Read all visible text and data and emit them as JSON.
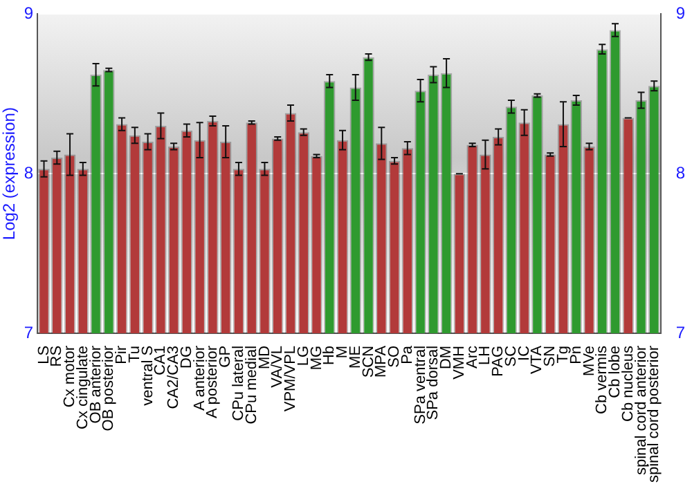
{
  "chart_data": {
    "type": "bar",
    "ylabel": "Log2 (expression)",
    "categories": [
      "LS",
      "RS",
      "Cx motor",
      "Cx cingulate",
      "OB anterior",
      "OB posterior",
      "Pir",
      "Tu",
      "ventral S",
      "CA1",
      "CA2/CA3",
      "DG",
      "A anterior",
      "A posterior",
      "GP",
      "CPu lateral",
      "CPu medial",
      "MD",
      "VA/VL",
      "VPM/VPL",
      "LG",
      "MG",
      "Hb",
      "M",
      "ME",
      "SCN",
      "MPA",
      "SO",
      "Pa",
      "SPa ventral",
      "SPa dorsal",
      "DM",
      "VMH",
      "Arc",
      "LH",
      "PAG",
      "SC",
      "IC",
      "VTA",
      "SN",
      "Tg",
      "Pn",
      "MVe",
      "Cb vermis",
      "Cb lobe",
      "Cb nucleus",
      "spinal cord anterior",
      "spinal cord posterior"
    ],
    "values": [
      8.03,
      8.1,
      8.12,
      8.03,
      8.62,
      8.65,
      8.31,
      8.24,
      8.2,
      8.3,
      8.17,
      8.27,
      8.21,
      8.33,
      8.2,
      8.03,
      8.32,
      8.03,
      8.22,
      8.38,
      8.26,
      8.11,
      8.58,
      8.21,
      8.54,
      8.73,
      8.19,
      8.08,
      8.16,
      8.52,
      8.62,
      8.63,
      8.0,
      8.18,
      8.12,
      8.23,
      8.42,
      8.32,
      8.49,
      8.12,
      8.31,
      8.46,
      8.17,
      8.78,
      8.9,
      8.35,
      8.46,
      8.55
    ],
    "errors": [
      0.05,
      0.04,
      0.13,
      0.04,
      0.07,
      0.01,
      0.04,
      0.05,
      0.05,
      0.08,
      0.02,
      0.04,
      0.11,
      0.03,
      0.1,
      0.04,
      0.01,
      0.04,
      0.01,
      0.05,
      0.02,
      0.01,
      0.04,
      0.06,
      0.08,
      0.02,
      0.1,
      0.02,
      0.04,
      0.07,
      0.05,
      0.09,
      0.0,
      0.01,
      0.09,
      0.05,
      0.04,
      0.08,
      0.01,
      0.01,
      0.14,
      0.03,
      0.02,
      0.03,
      0.04,
      0.0,
      0.05,
      0.03
    ],
    "colors": [
      "#b23a3a",
      "#b23a3a",
      "#b23a3a",
      "#b23a3a",
      "#2f9a2f",
      "#2f9a2f",
      "#b23a3a",
      "#b23a3a",
      "#b23a3a",
      "#b23a3a",
      "#b23a3a",
      "#b23a3a",
      "#b23a3a",
      "#b23a3a",
      "#b23a3a",
      "#b23a3a",
      "#b23a3a",
      "#b23a3a",
      "#b23a3a",
      "#b23a3a",
      "#b23a3a",
      "#b23a3a",
      "#2f9a2f",
      "#b23a3a",
      "#2f9a2f",
      "#2f9a2f",
      "#b23a3a",
      "#b23a3a",
      "#b23a3a",
      "#2f9a2f",
      "#2f9a2f",
      "#2f9a2f",
      "#b23a3a",
      "#b23a3a",
      "#b23a3a",
      "#b23a3a",
      "#2f9a2f",
      "#b23a3a",
      "#2f9a2f",
      "#b23a3a",
      "#b23a3a",
      "#2f9a2f",
      "#b23a3a",
      "#2f9a2f",
      "#2f9a2f",
      "#b23a3a",
      "#2f9a2f",
      "#2f9a2f"
    ],
    "ylim": [
      7,
      9
    ],
    "yticks": [
      7,
      8,
      9
    ],
    "y2lim": [
      7,
      9
    ],
    "y2ticks": [
      7,
      8,
      9
    ],
    "grid": "y",
    "legend": false
  }
}
